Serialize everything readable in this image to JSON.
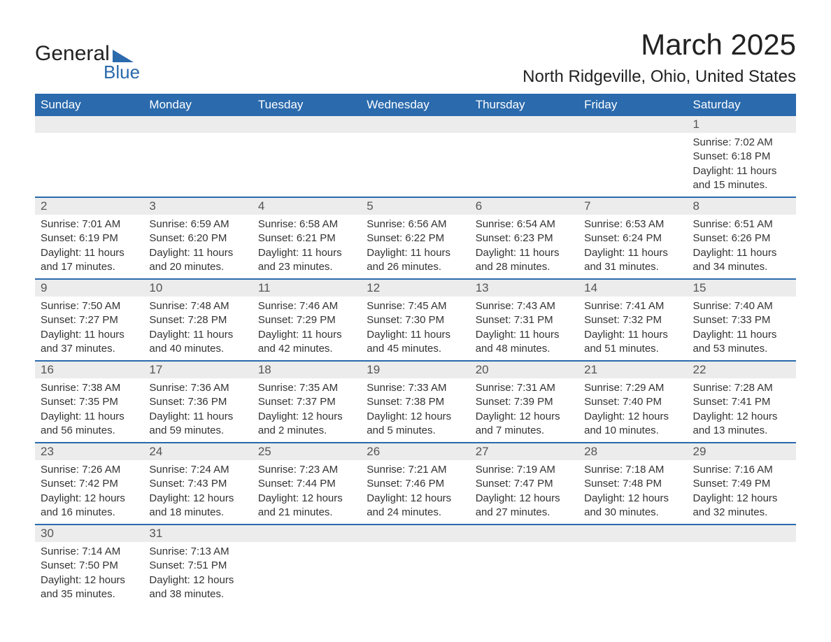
{
  "logo": {
    "top": "General",
    "bottom": "Blue"
  },
  "title": "March 2025",
  "location": "North Ridgeville, Ohio, United States",
  "day_headers": [
    "Sunday",
    "Monday",
    "Tuesday",
    "Wednesday",
    "Thursday",
    "Friday",
    "Saturday"
  ],
  "colors": {
    "header_bg": "#2a6aad",
    "header_text": "#ffffff",
    "daynum_bg": "#ececec",
    "border": "#2a6aad"
  },
  "weeks": [
    [
      {
        "day": "",
        "lines": [
          "",
          "",
          "",
          ""
        ]
      },
      {
        "day": "",
        "lines": [
          "",
          "",
          "",
          ""
        ]
      },
      {
        "day": "",
        "lines": [
          "",
          "",
          "",
          ""
        ]
      },
      {
        "day": "",
        "lines": [
          "",
          "",
          "",
          ""
        ]
      },
      {
        "day": "",
        "lines": [
          "",
          "",
          "",
          ""
        ]
      },
      {
        "day": "",
        "lines": [
          "",
          "",
          "",
          ""
        ]
      },
      {
        "day": "1",
        "lines": [
          "Sunrise: 7:02 AM",
          "Sunset: 6:18 PM",
          "Daylight: 11 hours",
          "and 15 minutes."
        ]
      }
    ],
    [
      {
        "day": "2",
        "lines": [
          "Sunrise: 7:01 AM",
          "Sunset: 6:19 PM",
          "Daylight: 11 hours",
          "and 17 minutes."
        ]
      },
      {
        "day": "3",
        "lines": [
          "Sunrise: 6:59 AM",
          "Sunset: 6:20 PM",
          "Daylight: 11 hours",
          "and 20 minutes."
        ]
      },
      {
        "day": "4",
        "lines": [
          "Sunrise: 6:58 AM",
          "Sunset: 6:21 PM",
          "Daylight: 11 hours",
          "and 23 minutes."
        ]
      },
      {
        "day": "5",
        "lines": [
          "Sunrise: 6:56 AM",
          "Sunset: 6:22 PM",
          "Daylight: 11 hours",
          "and 26 minutes."
        ]
      },
      {
        "day": "6",
        "lines": [
          "Sunrise: 6:54 AM",
          "Sunset: 6:23 PM",
          "Daylight: 11 hours",
          "and 28 minutes."
        ]
      },
      {
        "day": "7",
        "lines": [
          "Sunrise: 6:53 AM",
          "Sunset: 6:24 PM",
          "Daylight: 11 hours",
          "and 31 minutes."
        ]
      },
      {
        "day": "8",
        "lines": [
          "Sunrise: 6:51 AM",
          "Sunset: 6:26 PM",
          "Daylight: 11 hours",
          "and 34 minutes."
        ]
      }
    ],
    [
      {
        "day": "9",
        "lines": [
          "Sunrise: 7:50 AM",
          "Sunset: 7:27 PM",
          "Daylight: 11 hours",
          "and 37 minutes."
        ]
      },
      {
        "day": "10",
        "lines": [
          "Sunrise: 7:48 AM",
          "Sunset: 7:28 PM",
          "Daylight: 11 hours",
          "and 40 minutes."
        ]
      },
      {
        "day": "11",
        "lines": [
          "Sunrise: 7:46 AM",
          "Sunset: 7:29 PM",
          "Daylight: 11 hours",
          "and 42 minutes."
        ]
      },
      {
        "day": "12",
        "lines": [
          "Sunrise: 7:45 AM",
          "Sunset: 7:30 PM",
          "Daylight: 11 hours",
          "and 45 minutes."
        ]
      },
      {
        "day": "13",
        "lines": [
          "Sunrise: 7:43 AM",
          "Sunset: 7:31 PM",
          "Daylight: 11 hours",
          "and 48 minutes."
        ]
      },
      {
        "day": "14",
        "lines": [
          "Sunrise: 7:41 AM",
          "Sunset: 7:32 PM",
          "Daylight: 11 hours",
          "and 51 minutes."
        ]
      },
      {
        "day": "15",
        "lines": [
          "Sunrise: 7:40 AM",
          "Sunset: 7:33 PM",
          "Daylight: 11 hours",
          "and 53 minutes."
        ]
      }
    ],
    [
      {
        "day": "16",
        "lines": [
          "Sunrise: 7:38 AM",
          "Sunset: 7:35 PM",
          "Daylight: 11 hours",
          "and 56 minutes."
        ]
      },
      {
        "day": "17",
        "lines": [
          "Sunrise: 7:36 AM",
          "Sunset: 7:36 PM",
          "Daylight: 11 hours",
          "and 59 minutes."
        ]
      },
      {
        "day": "18",
        "lines": [
          "Sunrise: 7:35 AM",
          "Sunset: 7:37 PM",
          "Daylight: 12 hours",
          "and 2 minutes."
        ]
      },
      {
        "day": "19",
        "lines": [
          "Sunrise: 7:33 AM",
          "Sunset: 7:38 PM",
          "Daylight: 12 hours",
          "and 5 minutes."
        ]
      },
      {
        "day": "20",
        "lines": [
          "Sunrise: 7:31 AM",
          "Sunset: 7:39 PM",
          "Daylight: 12 hours",
          "and 7 minutes."
        ]
      },
      {
        "day": "21",
        "lines": [
          "Sunrise: 7:29 AM",
          "Sunset: 7:40 PM",
          "Daylight: 12 hours",
          "and 10 minutes."
        ]
      },
      {
        "day": "22",
        "lines": [
          "Sunrise: 7:28 AM",
          "Sunset: 7:41 PM",
          "Daylight: 12 hours",
          "and 13 minutes."
        ]
      }
    ],
    [
      {
        "day": "23",
        "lines": [
          "Sunrise: 7:26 AM",
          "Sunset: 7:42 PM",
          "Daylight: 12 hours",
          "and 16 minutes."
        ]
      },
      {
        "day": "24",
        "lines": [
          "Sunrise: 7:24 AM",
          "Sunset: 7:43 PM",
          "Daylight: 12 hours",
          "and 18 minutes."
        ]
      },
      {
        "day": "25",
        "lines": [
          "Sunrise: 7:23 AM",
          "Sunset: 7:44 PM",
          "Daylight: 12 hours",
          "and 21 minutes."
        ]
      },
      {
        "day": "26",
        "lines": [
          "Sunrise: 7:21 AM",
          "Sunset: 7:46 PM",
          "Daylight: 12 hours",
          "and 24 minutes."
        ]
      },
      {
        "day": "27",
        "lines": [
          "Sunrise: 7:19 AM",
          "Sunset: 7:47 PM",
          "Daylight: 12 hours",
          "and 27 minutes."
        ]
      },
      {
        "day": "28",
        "lines": [
          "Sunrise: 7:18 AM",
          "Sunset: 7:48 PM",
          "Daylight: 12 hours",
          "and 30 minutes."
        ]
      },
      {
        "day": "29",
        "lines": [
          "Sunrise: 7:16 AM",
          "Sunset: 7:49 PM",
          "Daylight: 12 hours",
          "and 32 minutes."
        ]
      }
    ],
    [
      {
        "day": "30",
        "lines": [
          "Sunrise: 7:14 AM",
          "Sunset: 7:50 PM",
          "Daylight: 12 hours",
          "and 35 minutes."
        ]
      },
      {
        "day": "31",
        "lines": [
          "Sunrise: 7:13 AM",
          "Sunset: 7:51 PM",
          "Daylight: 12 hours",
          "and 38 minutes."
        ]
      },
      {
        "day": "",
        "lines": [
          "",
          "",
          "",
          ""
        ]
      },
      {
        "day": "",
        "lines": [
          "",
          "",
          "",
          ""
        ]
      },
      {
        "day": "",
        "lines": [
          "",
          "",
          "",
          ""
        ]
      },
      {
        "day": "",
        "lines": [
          "",
          "",
          "",
          ""
        ]
      },
      {
        "day": "",
        "lines": [
          "",
          "",
          "",
          ""
        ]
      }
    ]
  ]
}
